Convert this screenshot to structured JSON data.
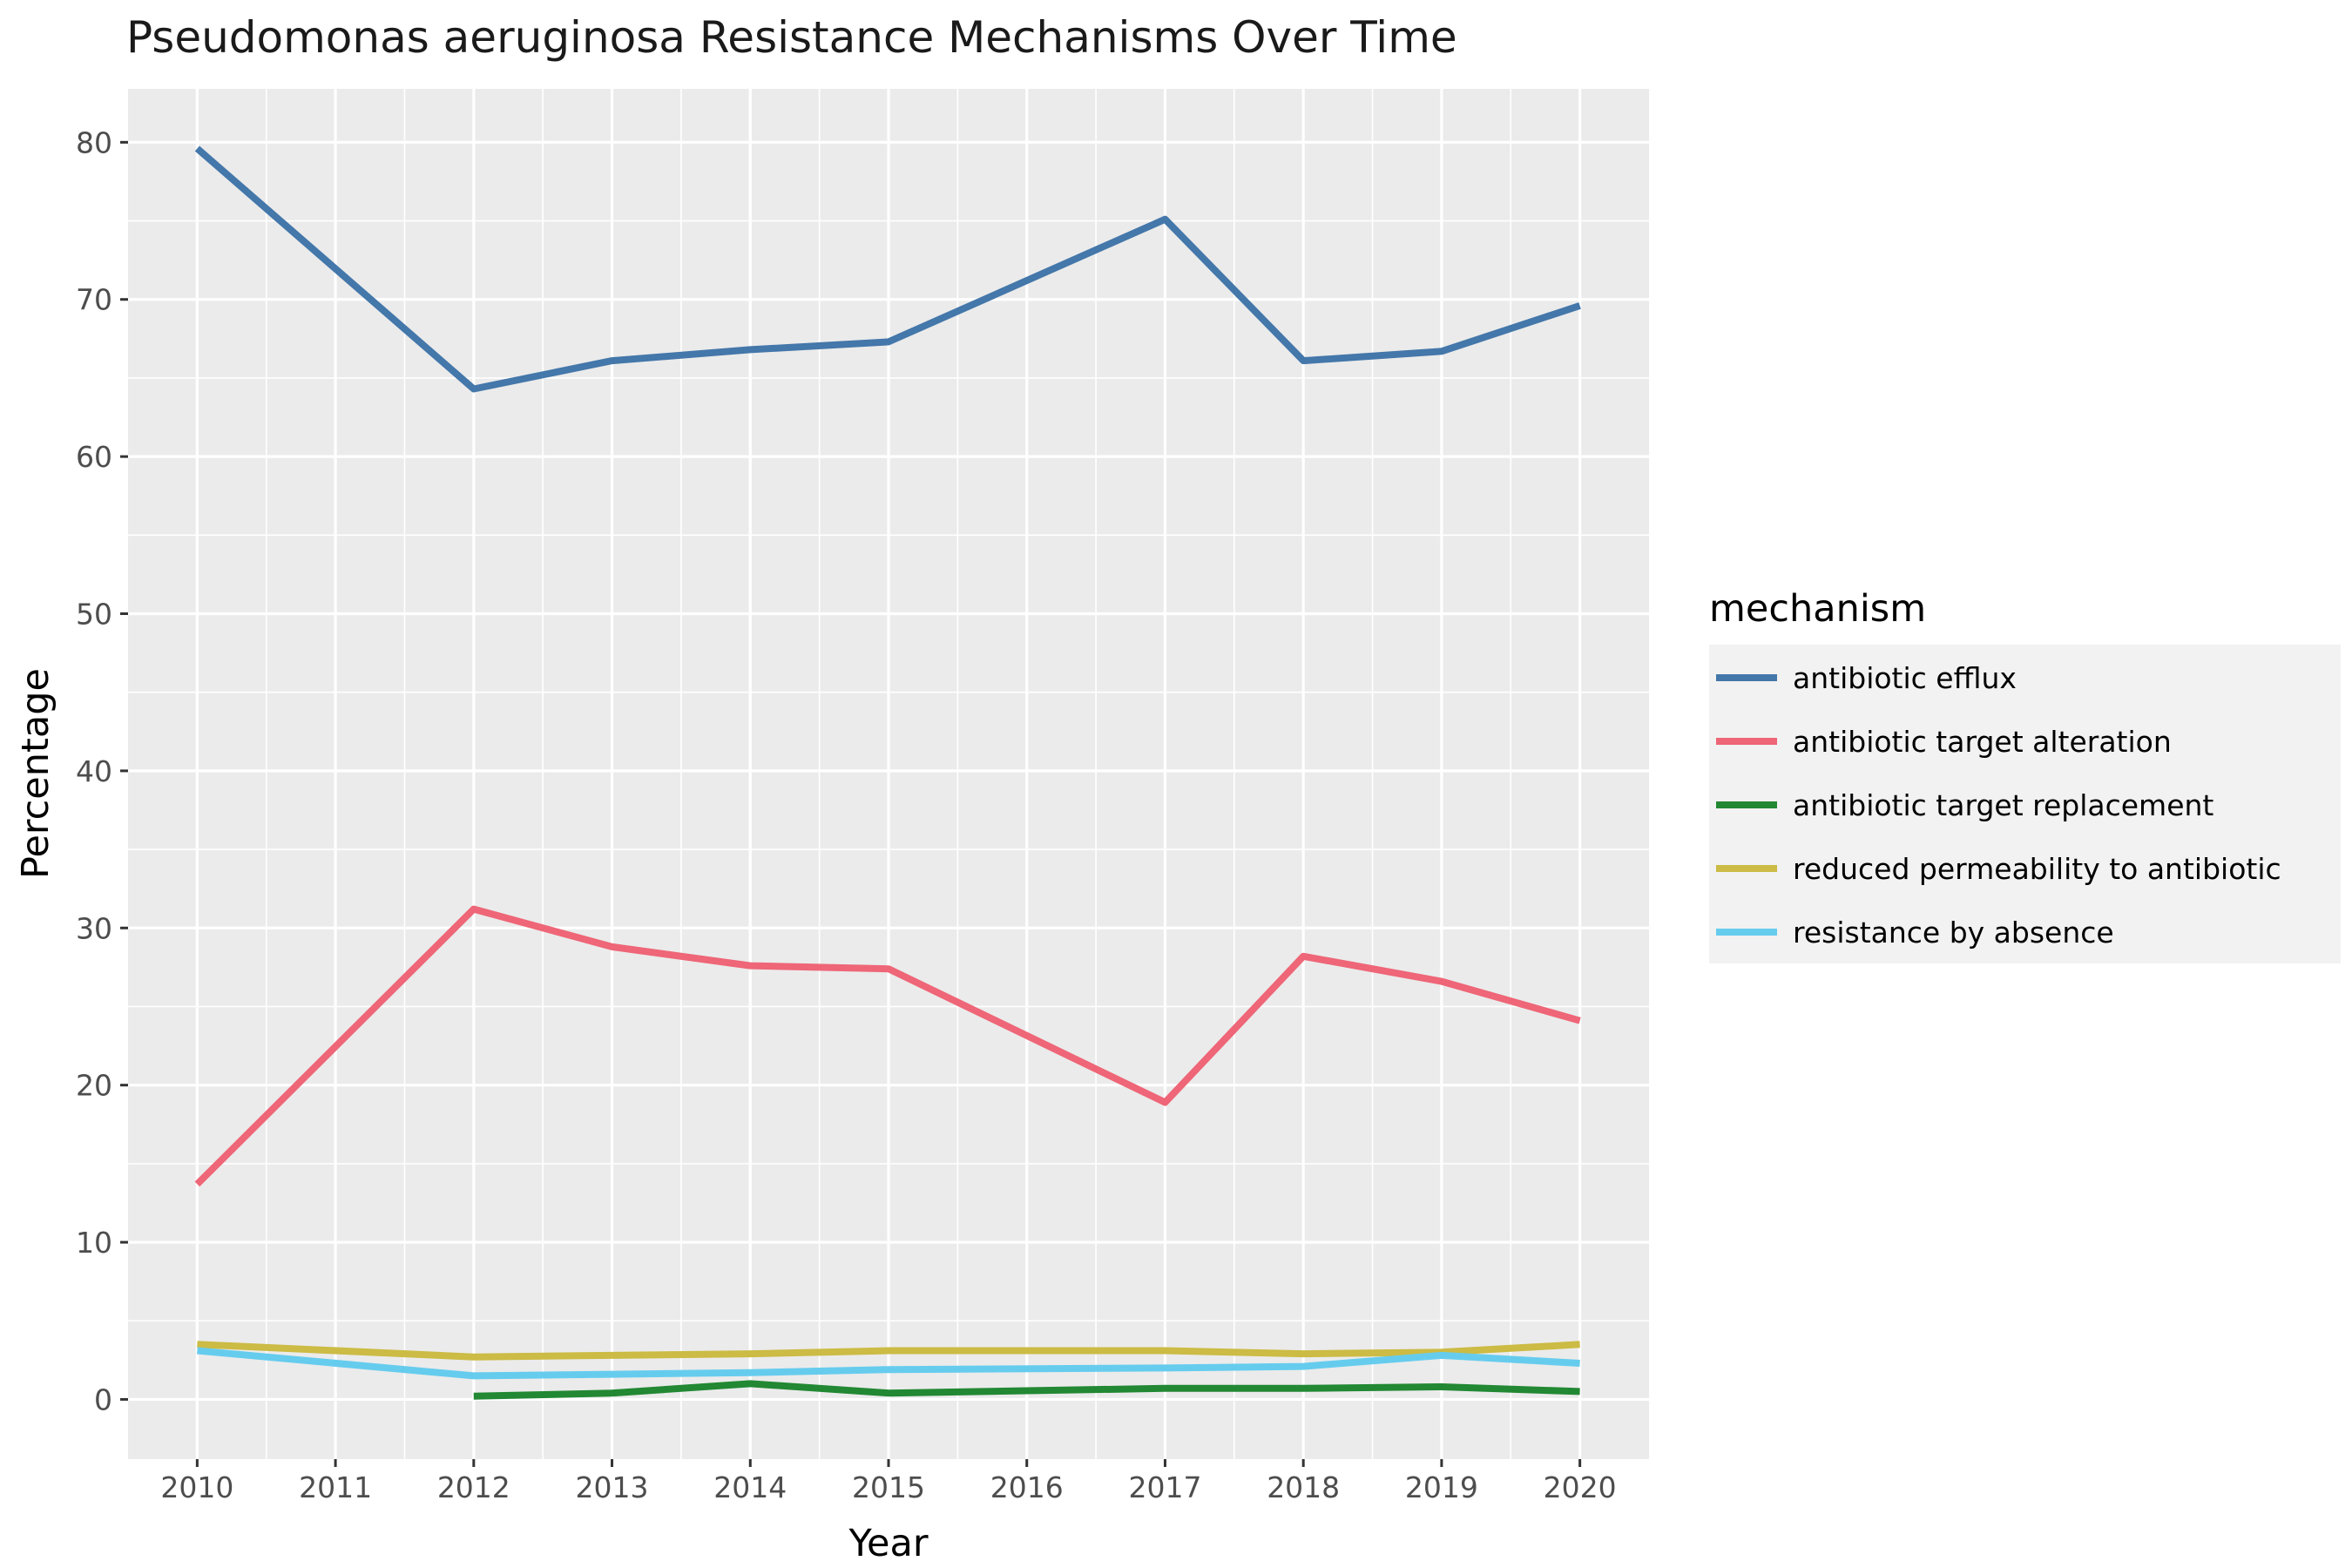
{
  "chart_data": {
    "type": "line",
    "title": "Pseudomonas aeruginosa Resistance Mechanisms Over Time",
    "xlabel": "Year",
    "ylabel": "Percentage",
    "x": [
      2010,
      2011,
      2012,
      2013,
      2014,
      2015,
      2016,
      2017,
      2018,
      2019,
      2020
    ],
    "x_ticks": [
      "2010",
      "2011",
      "2012",
      "2013",
      "2014",
      "2015",
      "2016",
      "2017",
      "2018",
      "2019",
      "2020"
    ],
    "xlim": [
      2009.5,
      2020.5
    ],
    "ylim": [
      -3.8,
      83.4
    ],
    "y_ticks": [
      0,
      10,
      20,
      30,
      40,
      50,
      60,
      70,
      80
    ],
    "grid": true,
    "legend_title": "mechanism",
    "legend_position": "right",
    "series": [
      {
        "name": "antibiotic efflux",
        "color": "#4477AA",
        "points": [
          [
            2010,
            79.6
          ],
          [
            2012,
            64.3
          ],
          [
            2013,
            66.1
          ],
          [
            2014,
            66.8
          ],
          [
            2015,
            67.3
          ],
          [
            2017,
            75.1
          ],
          [
            2018,
            66.1
          ],
          [
            2019,
            66.7
          ],
          [
            2020,
            69.6
          ]
        ]
      },
      {
        "name": "antibiotic target alteration",
        "color": "#EE6677",
        "points": [
          [
            2010,
            13.7
          ],
          [
            2012,
            31.2
          ],
          [
            2013,
            28.8
          ],
          [
            2014,
            27.6
          ],
          [
            2015,
            27.4
          ],
          [
            2017,
            18.9
          ],
          [
            2018,
            28.2
          ],
          [
            2019,
            26.6
          ],
          [
            2020,
            24.1
          ]
        ]
      },
      {
        "name": "antibiotic target replacement",
        "color": "#228833",
        "points": [
          [
            2012,
            0.2
          ],
          [
            2013,
            0.4
          ],
          [
            2014,
            1.0
          ],
          [
            2015,
            0.4
          ],
          [
            2017,
            0.7
          ],
          [
            2018,
            0.7
          ],
          [
            2019,
            0.8
          ],
          [
            2020,
            0.5
          ]
        ]
      },
      {
        "name": "reduced permeability to antibiotic",
        "color": "#CCBB44",
        "points": [
          [
            2010,
            3.5
          ],
          [
            2012,
            2.7
          ],
          [
            2013,
            2.8
          ],
          [
            2014,
            2.9
          ],
          [
            2015,
            3.1
          ],
          [
            2017,
            3.1
          ],
          [
            2018,
            2.9
          ],
          [
            2019,
            3.0
          ],
          [
            2020,
            3.5
          ]
        ]
      },
      {
        "name": "resistance by absence",
        "color": "#66CCEE",
        "points": [
          [
            2010,
            3.1
          ],
          [
            2012,
            1.5
          ],
          [
            2013,
            1.6
          ],
          [
            2014,
            1.7
          ],
          [
            2015,
            1.9
          ],
          [
            2017,
            2.0
          ],
          [
            2018,
            2.1
          ],
          [
            2019,
            2.8
          ],
          [
            2020,
            2.3
          ]
        ]
      }
    ]
  }
}
